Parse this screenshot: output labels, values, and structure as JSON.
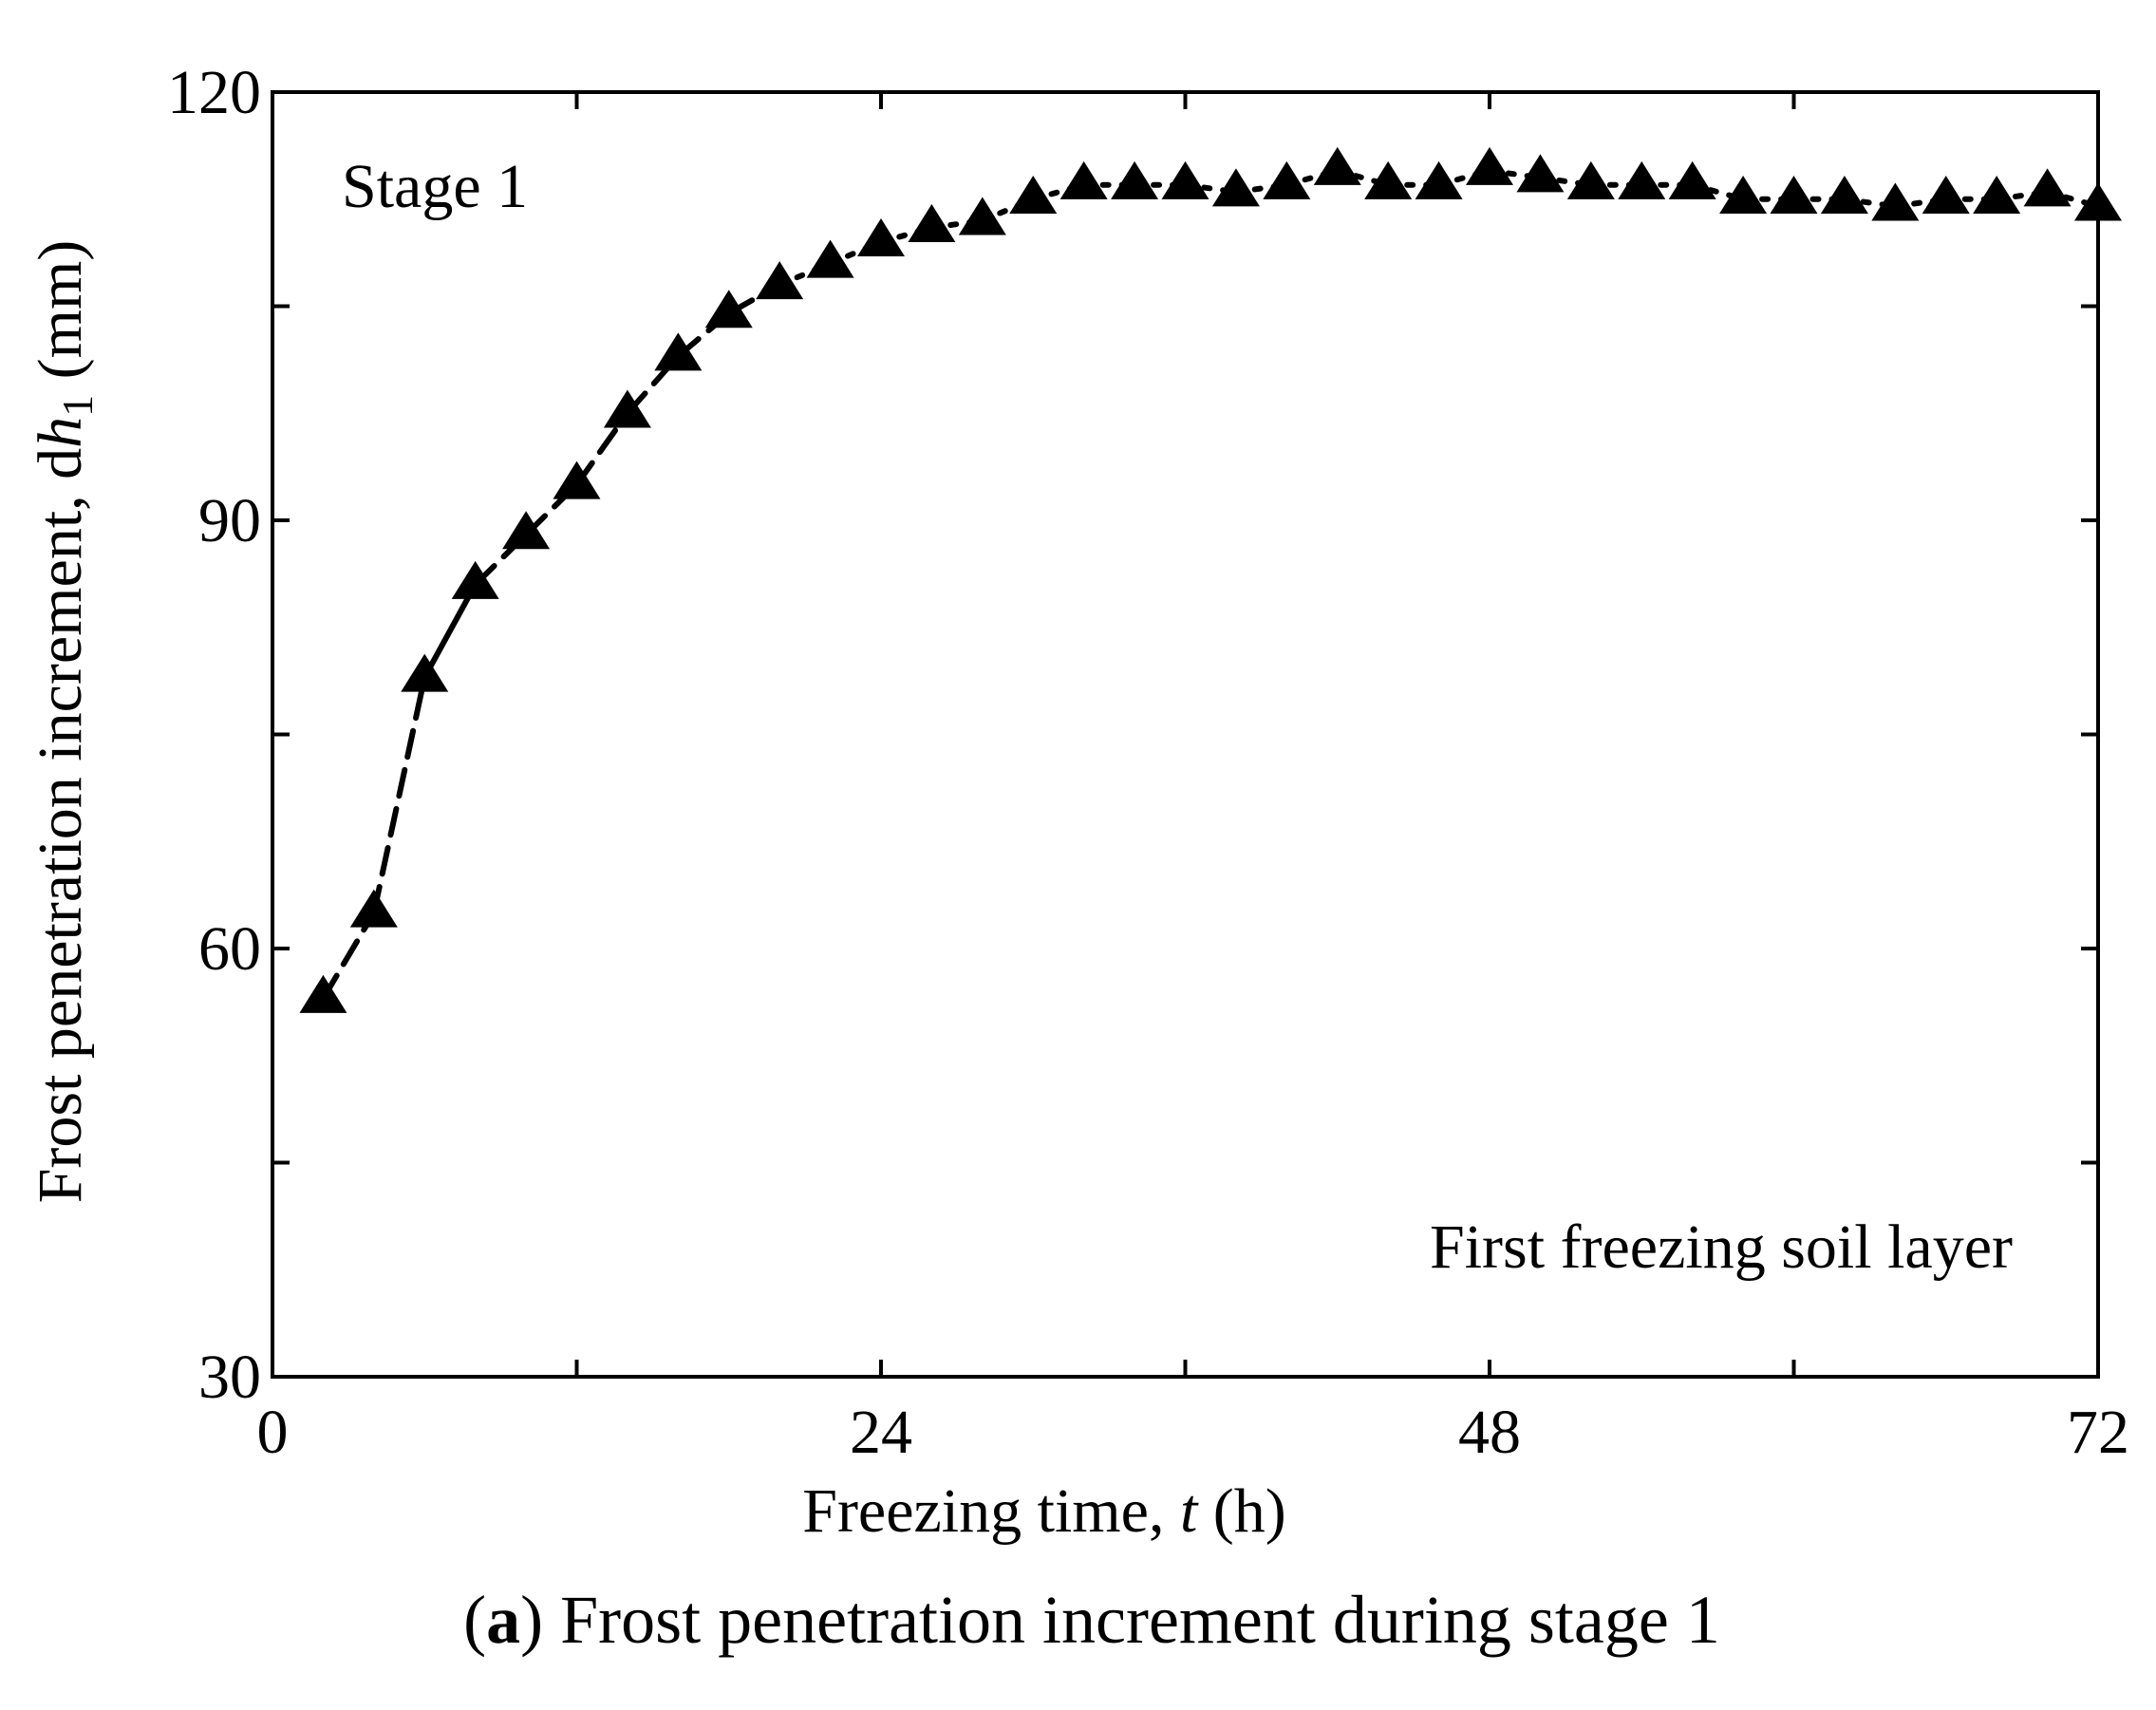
{
  "chart_data": {
    "type": "line",
    "title": "",
    "caption": {
      "prefix": "(",
      "letter": "a",
      "suffix": ") Frost penetration increment during stage 1"
    },
    "xlabel": {
      "pre": "Freezing time, ",
      "var": "t",
      "post": " (h)"
    },
    "ylabel": {
      "pre": "Frost penetration increment, d",
      "var": "h",
      "sub": "1",
      "post": " (mm)"
    },
    "xlim": [
      0,
      72
    ],
    "ylim": [
      30,
      120
    ],
    "xticks": [
      0,
      24,
      48,
      72
    ],
    "yticks": [
      30,
      60,
      90,
      120
    ],
    "xminor": [
      12,
      36,
      60
    ],
    "yminor": [
      45,
      75,
      105
    ],
    "annotations": {
      "stage": "Stage 1",
      "layer": "First freezing soil layer"
    },
    "series": [
      {
        "name": "Frost penetration increment",
        "marker": "triangle",
        "color": "#000000",
        "x": [
          2,
          4,
          6,
          8,
          10,
          12,
          14,
          16,
          18,
          20,
          22,
          24,
          26,
          28,
          30,
          32,
          34,
          36,
          38,
          40,
          42,
          44,
          46,
          48,
          50,
          52,
          54,
          56,
          58,
          60,
          62,
          64,
          66,
          68,
          70,
          72
        ],
        "y": [
          56.5,
          62.5,
          79,
          85.5,
          89,
          92.5,
          97.5,
          101.5,
          104.5,
          106.5,
          108,
          109.5,
          110.5,
          111,
          112.5,
          113.5,
          113.5,
          113.5,
          113,
          113.5,
          114.5,
          113.5,
          113.5,
          114.5,
          114,
          113.5,
          113.5,
          113.5,
          112.5,
          112.5,
          112.5,
          112,
          112.5,
          112.5,
          113,
          112
        ]
      }
    ]
  }
}
